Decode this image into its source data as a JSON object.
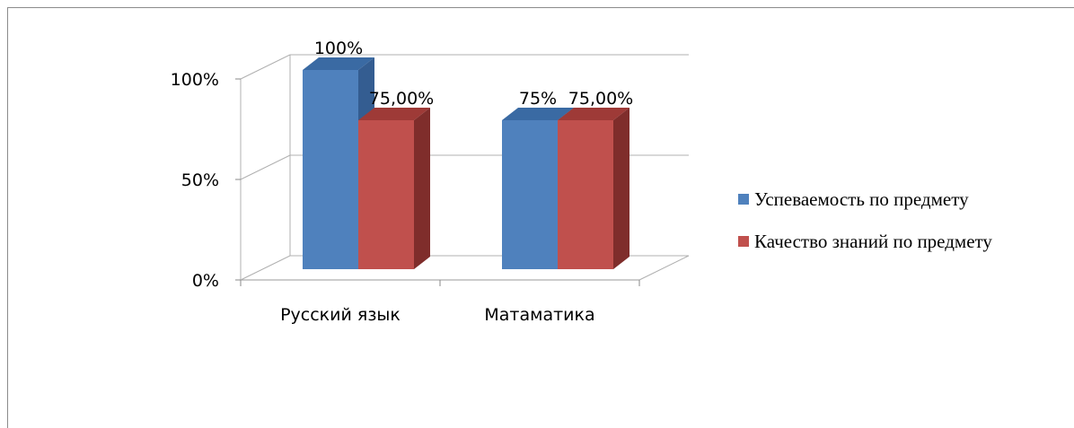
{
  "chart_data": {
    "type": "bar",
    "style": "3d-clustered-column",
    "title": "",
    "xlabel": "",
    "ylabel": "",
    "categories": [
      "Русский язык",
      "Матаматика"
    ],
    "series": [
      {
        "name": "Успеваемость по предмету",
        "values": [
          1.0,
          0.75
        ],
        "data_labels": [
          "100%",
          "75%"
        ],
        "color": "#4f81bd",
        "top_color": "#3a6aa3",
        "side_color": "#345d91"
      },
      {
        "name": "Качество знаний по предмету",
        "values": [
          0.75,
          0.75
        ],
        "data_labels": [
          "75,00%",
          "75,00%"
        ],
        "color": "#c0504d",
        "top_color": "#9e3a37",
        "side_color": "#7f2d2b"
      }
    ],
    "ylim": [
      0,
      1
    ],
    "yticks": [
      0,
      0.5,
      1
    ],
    "ytick_labels": [
      "0%",
      "50%",
      "100%"
    ],
    "grid": true,
    "legend_position": "right"
  }
}
